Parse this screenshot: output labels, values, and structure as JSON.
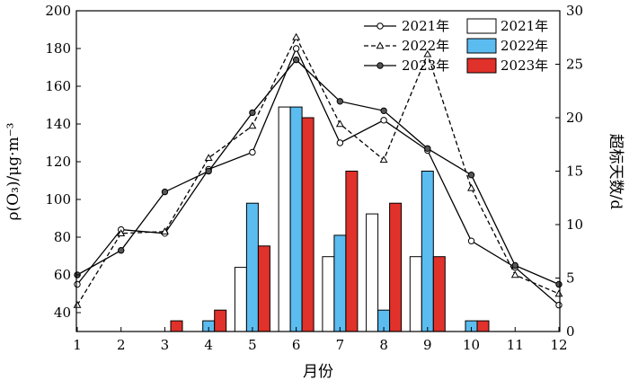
{
  "chart_data": {
    "type": "bar+line",
    "x": [
      1,
      2,
      3,
      4,
      5,
      6,
      7,
      8,
      9,
      10,
      11,
      12
    ],
    "xlabel": "月份",
    "ylabel_left": "ρ(O₃)/μg·m⁻³",
    "ylabel_right": "超标天数/d",
    "ylim_left": [
      30,
      200
    ],
    "ylim_right": [
      0,
      30
    ],
    "yticks_left": [
      40,
      60,
      80,
      100,
      120,
      140,
      160,
      180,
      200
    ],
    "yticks_right": [
      0,
      5,
      10,
      15,
      20,
      25,
      30
    ],
    "line_series": [
      {
        "name": "2021年",
        "marker": "open-circle",
        "dash": "solid",
        "values": [
          55,
          84,
          82,
          116,
          125,
          180,
          130,
          142,
          126,
          78,
          64,
          44
        ]
      },
      {
        "name": "2022年",
        "marker": "open-triangle",
        "dash": "dashed",
        "values": [
          44,
          82,
          83,
          122,
          139,
          186,
          140,
          121,
          177,
          106,
          60,
          50
        ]
      },
      {
        "name": "2023年",
        "marker": "filled-circle",
        "dash": "solid",
        "values": [
          60,
          73,
          104,
          115,
          146,
          174,
          152,
          147,
          127,
          113,
          65,
          55
        ]
      }
    ],
    "bar_series": [
      {
        "name": "2021年",
        "color": "#ffffff",
        "values": [
          0,
          0,
          0,
          0,
          6,
          21,
          7,
          11,
          7,
          0,
          0,
          0
        ]
      },
      {
        "name": "2022年",
        "color": "#5bbcf0",
        "values": [
          0,
          0,
          0,
          1,
          12,
          21,
          9,
          2,
          15,
          1,
          0,
          0
        ]
      },
      {
        "name": "2023年",
        "color": "#e0312a",
        "values": [
          0,
          0,
          1,
          2,
          8,
          20,
          15,
          12,
          7,
          1,
          0,
          0
        ]
      }
    ],
    "legend_position": "top-right"
  }
}
